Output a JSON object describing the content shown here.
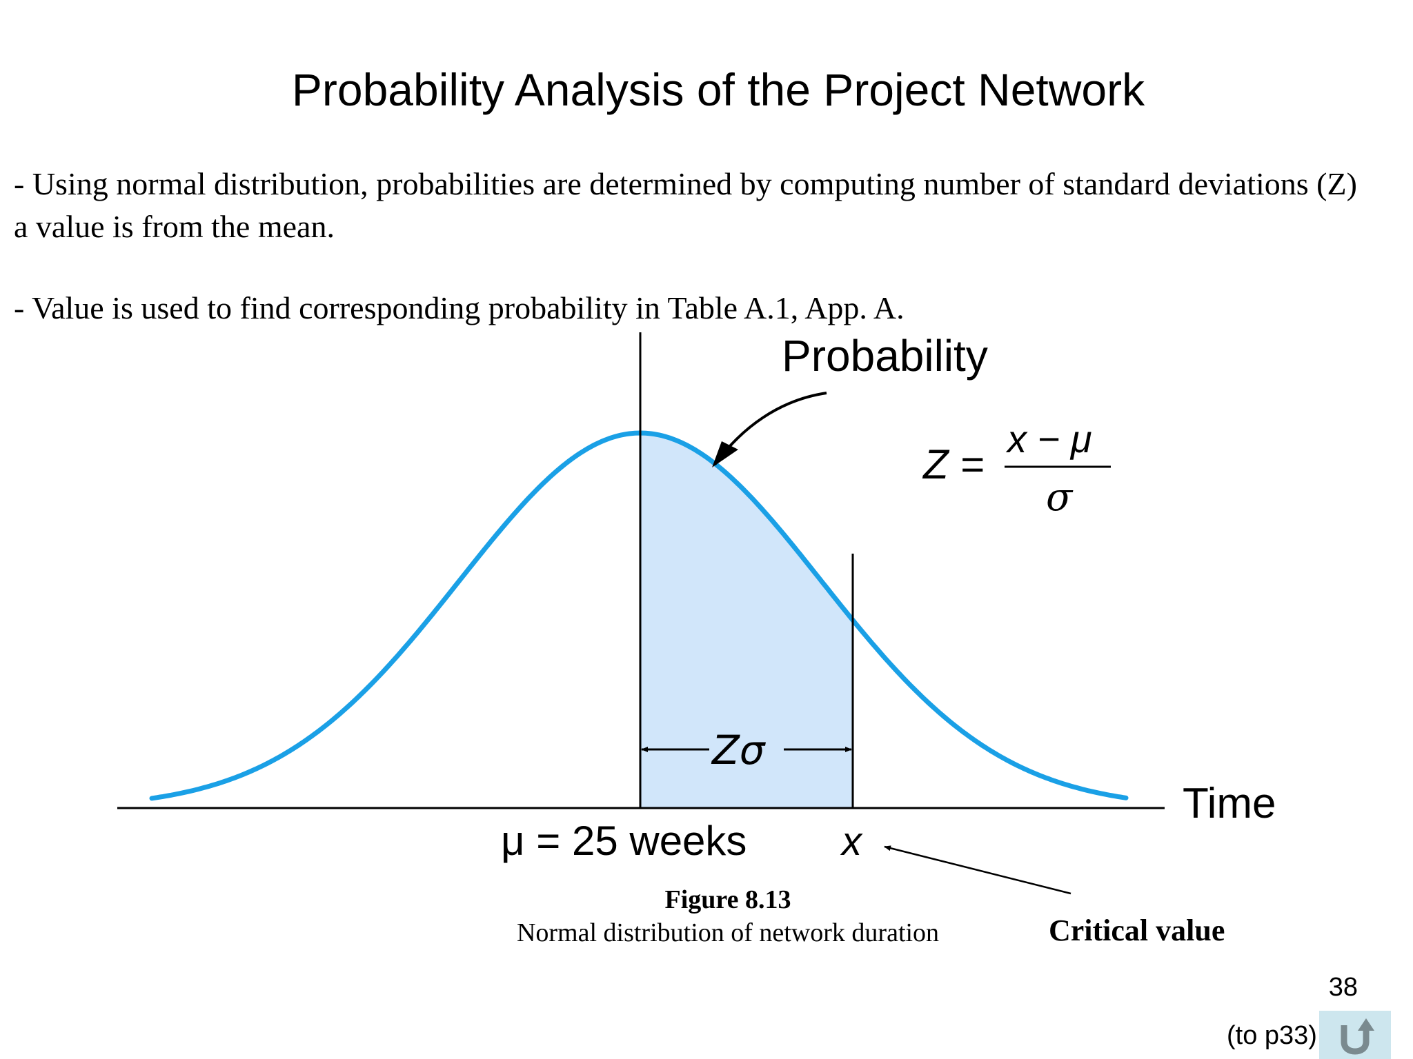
{
  "title": "Probability Analysis of the Project Network",
  "bullets": [
    "- Using normal distribution, probabilities are determined by computing number of standard deviations (Z) a value is from the mean.",
    "- Value is used to find corresponding probability in Table A.1, App. A."
  ],
  "diagram": {
    "probability_label": "Probability",
    "formula_z": "Z =",
    "formula_numerator": "x − μ",
    "formula_denominator": "σ",
    "z_sigma_label": "Zσ",
    "axis_label": "Time",
    "mean_label": "μ = 25 weeks",
    "x_label": "x",
    "critical_label": "Critical value"
  },
  "caption": {
    "number": "Figure 8.13",
    "text": "Normal distribution of network duration"
  },
  "footer": {
    "page_number": "38",
    "back_link": "(to p33)",
    "return_icon": "return-arrow-icon"
  },
  "colors": {
    "curve": "#1aa0e6",
    "shaded_area": "#d1e6fa"
  }
}
